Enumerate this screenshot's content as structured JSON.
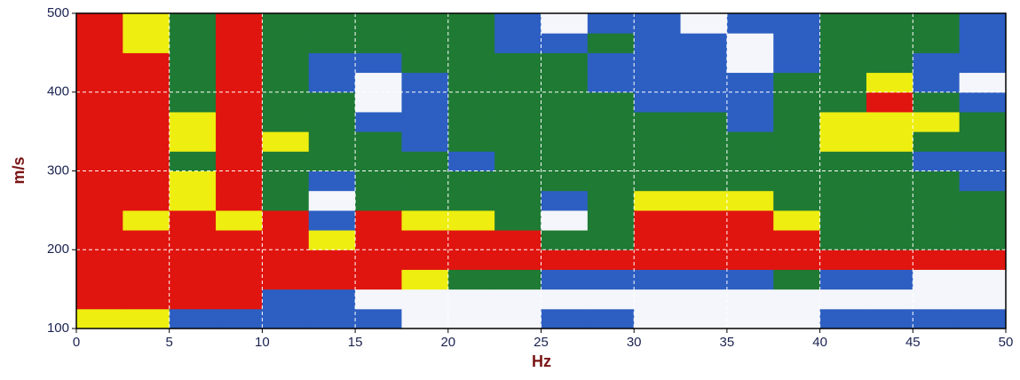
{
  "chart_data": {
    "type": "heatmap",
    "xlabel": "Hz",
    "ylabel": "m/s",
    "xlim": [
      0,
      50
    ],
    "ylim": [
      100,
      500
    ],
    "xticks": [
      0,
      5,
      10,
      15,
      20,
      25,
      30,
      35,
      40,
      45,
      50
    ],
    "yticks": [
      100,
      200,
      300,
      400,
      500
    ],
    "grid": true,
    "colors": [
      "#f4f6fb",
      "#2d5fc2",
      "#1f7a34",
      "#eeee10",
      "#e0150f"
    ],
    "xbins": [
      0,
      2.5,
      5,
      7.5,
      10,
      12.5,
      15,
      17.5,
      20,
      22.5,
      25,
      27.5,
      30,
      32.5,
      35,
      37.5,
      40,
      42.5,
      45,
      47.5,
      50
    ],
    "ybins": [
      100,
      125,
      150,
      175,
      200,
      225,
      250,
      275,
      300,
      325,
      350,
      375,
      400,
      425,
      450,
      475,
      500
    ],
    "z": [
      [
        3,
        3,
        1,
        1,
        1,
        1,
        1,
        0,
        0,
        0,
        1,
        1,
        0,
        0,
        0,
        0,
        1,
        1,
        1,
        1
      ],
      [
        4,
        4,
        4,
        4,
        1,
        1,
        0,
        0,
        0,
        0,
        0,
        0,
        0,
        0,
        0,
        0,
        0,
        0,
        0,
        0
      ],
      [
        4,
        4,
        4,
        4,
        4,
        4,
        4,
        3,
        2,
        2,
        1,
        1,
        1,
        1,
        1,
        2,
        1,
        1,
        0,
        0
      ],
      [
        4,
        4,
        4,
        4,
        4,
        4,
        4,
        4,
        4,
        4,
        4,
        4,
        4,
        4,
        4,
        4,
        4,
        4,
        4,
        4
      ],
      [
        4,
        4,
        4,
        4,
        4,
        3,
        4,
        4,
        4,
        4,
        2,
        2,
        4,
        4,
        4,
        4,
        2,
        2,
        2,
        2
      ],
      [
        4,
        3,
        4,
        3,
        4,
        1,
        4,
        3,
        3,
        2,
        0,
        2,
        4,
        4,
        4,
        3,
        2,
        2,
        2,
        2
      ],
      [
        4,
        4,
        3,
        4,
        2,
        0,
        2,
        2,
        2,
        2,
        1,
        2,
        3,
        3,
        3,
        2,
        2,
        2,
        2,
        2
      ],
      [
        4,
        4,
        3,
        4,
        2,
        1,
        2,
        2,
        2,
        2,
        2,
        2,
        2,
        2,
        2,
        2,
        2,
        2,
        2,
        1
      ],
      [
        4,
        4,
        2,
        4,
        2,
        2,
        2,
        2,
        1,
        2,
        2,
        2,
        2,
        2,
        2,
        2,
        2,
        2,
        1,
        1
      ],
      [
        4,
        4,
        3,
        4,
        3,
        2,
        2,
        1,
        2,
        2,
        2,
        2,
        2,
        2,
        2,
        2,
        3,
        3,
        2,
        2
      ],
      [
        4,
        4,
        3,
        4,
        2,
        2,
        1,
        1,
        2,
        2,
        2,
        2,
        2,
        2,
        1,
        2,
        3,
        3,
        3,
        2
      ],
      [
        4,
        4,
        2,
        4,
        2,
        2,
        0,
        1,
        2,
        2,
        2,
        2,
        1,
        1,
        1,
        2,
        2,
        4,
        2,
        1
      ],
      [
        4,
        4,
        2,
        4,
        2,
        1,
        0,
        1,
        2,
        2,
        2,
        1,
        1,
        1,
        1,
        2,
        2,
        3,
        1,
        0
      ],
      [
        4,
        4,
        2,
        4,
        2,
        1,
        1,
        2,
        2,
        2,
        2,
        1,
        1,
        1,
        0,
        1,
        2,
        2,
        1,
        1
      ],
      [
        4,
        3,
        2,
        4,
        2,
        2,
        2,
        2,
        2,
        1,
        1,
        2,
        1,
        1,
        0,
        1,
        2,
        2,
        2,
        1
      ],
      [
        4,
        3,
        2,
        4,
        2,
        2,
        2,
        2,
        2,
        1,
        0,
        1,
        1,
        0,
        1,
        1,
        2,
        2,
        2,
        1
      ]
    ]
  }
}
